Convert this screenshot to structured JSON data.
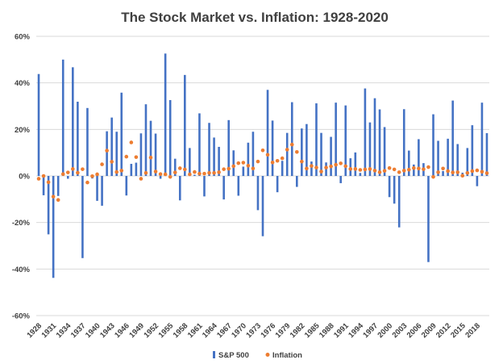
{
  "chart_data": {
    "type": "bar",
    "title": "The Stock Market vs. Inflation: 1928-2020",
    "xlabel": "",
    "ylabel": "",
    "ylim": [
      -0.6,
      0.6
    ],
    "y_ticks": [
      {
        "value": 0.6,
        "label": "60%"
      },
      {
        "value": 0.4,
        "label": "40%"
      },
      {
        "value": 0.2,
        "label": "20%"
      },
      {
        "value": 0.0,
        "label": "0%"
      },
      {
        "value": -0.2,
        "label": "-20%"
      },
      {
        "value": -0.4,
        "label": "-40%"
      },
      {
        "value": -0.6,
        "label": "-60%"
      }
    ],
    "x_tick_labels": [
      "1928",
      "1931",
      "1934",
      "1937",
      "1940",
      "1943",
      "1946",
      "1949",
      "1952",
      "1955",
      "1958",
      "1961",
      "1964",
      "1967",
      "1970",
      "1973",
      "1976",
      "1979",
      "1982",
      "1985",
      "1988",
      "1991",
      "1994",
      "1997",
      "2000",
      "2003",
      "2006",
      "2009",
      "2012",
      "2015",
      "2018"
    ],
    "grid": true,
    "legend_position": "bottom",
    "colors": {
      "sp500": "#4472c4",
      "inflation": "#ed7d31",
      "grid": "#d9d9d9",
      "text": "#404040"
    },
    "categories": [
      1928,
      1929,
      1930,
      1931,
      1932,
      1933,
      1934,
      1935,
      1936,
      1937,
      1938,
      1939,
      1940,
      1941,
      1942,
      1943,
      1944,
      1945,
      1946,
      1947,
      1948,
      1949,
      1950,
      1951,
      1952,
      1953,
      1954,
      1955,
      1956,
      1957,
      1958,
      1959,
      1960,
      1961,
      1962,
      1963,
      1964,
      1965,
      1966,
      1967,
      1968,
      1969,
      1970,
      1971,
      1972,
      1973,
      1974,
      1975,
      1976,
      1977,
      1978,
      1979,
      1980,
      1981,
      1982,
      1983,
      1984,
      1985,
      1986,
      1987,
      1988,
      1989,
      1990,
      1991,
      1992,
      1993,
      1994,
      1995,
      1996,
      1997,
      1998,
      1999,
      2000,
      2001,
      2002,
      2003,
      2004,
      2005,
      2006,
      2007,
      2008,
      2009,
      2010,
      2011,
      2012,
      2013,
      2014,
      2015,
      2016,
      2017,
      2018,
      2019,
      2020
    ],
    "series": [
      {
        "name": "S&P 500",
        "type": "bar",
        "values": [
          0.438,
          -0.083,
          -0.251,
          -0.438,
          -0.086,
          0.5,
          -0.012,
          0.467,
          0.319,
          -0.353,
          0.292,
          -0.011,
          -0.107,
          -0.128,
          0.192,
          0.251,
          0.19,
          0.358,
          -0.084,
          0.052,
          0.057,
          0.183,
          0.308,
          0.237,
          0.182,
          -0.012,
          0.526,
          0.326,
          0.074,
          -0.105,
          0.434,
          0.12,
          0.005,
          0.269,
          -0.088,
          0.228,
          0.165,
          0.125,
          -0.101,
          0.24,
          0.11,
          -0.085,
          0.04,
          0.143,
          0.19,
          -0.147,
          -0.259,
          0.37,
          0.238,
          -0.07,
          0.065,
          0.185,
          0.317,
          -0.047,
          0.204,
          0.223,
          0.062,
          0.312,
          0.185,
          0.058,
          0.168,
          0.315,
          -0.031,
          0.303,
          0.076,
          0.101,
          0.013,
          0.376,
          0.23,
          0.334,
          0.286,
          0.21,
          -0.091,
          -0.119,
          -0.221,
          0.287,
          0.109,
          0.049,
          0.158,
          0.055,
          -0.37,
          0.265,
          0.151,
          0.021,
          0.16,
          0.324,
          0.137,
          0.014,
          0.12,
          0.218,
          -0.044,
          0.315,
          0.184
        ]
      },
      {
        "name": "Inflation",
        "type": "scatter",
        "values": [
          -0.012,
          0.0,
          -0.027,
          -0.089,
          -0.103,
          0.008,
          0.015,
          0.03,
          0.014,
          0.029,
          -0.028,
          -0.001,
          0.007,
          0.05,
          0.109,
          0.061,
          0.017,
          0.023,
          0.083,
          0.144,
          0.081,
          -0.012,
          0.013,
          0.079,
          0.019,
          0.008,
          0.007,
          -0.004,
          0.015,
          0.033,
          0.028,
          0.007,
          0.017,
          0.01,
          0.01,
          0.013,
          0.013,
          0.016,
          0.029,
          0.031,
          0.042,
          0.055,
          0.057,
          0.044,
          0.032,
          0.062,
          0.11,
          0.091,
          0.058,
          0.065,
          0.076,
          0.113,
          0.135,
          0.103,
          0.062,
          0.032,
          0.043,
          0.036,
          0.019,
          0.036,
          0.041,
          0.048,
          0.054,
          0.042,
          0.03,
          0.03,
          0.026,
          0.028,
          0.03,
          0.023,
          0.016,
          0.022,
          0.034,
          0.028,
          0.016,
          0.023,
          0.027,
          0.034,
          0.032,
          0.029,
          0.038,
          -0.004,
          0.016,
          0.032,
          0.021,
          0.015,
          0.016,
          0.001,
          0.013,
          0.021,
          0.024,
          0.018,
          0.012
        ]
      }
    ]
  }
}
